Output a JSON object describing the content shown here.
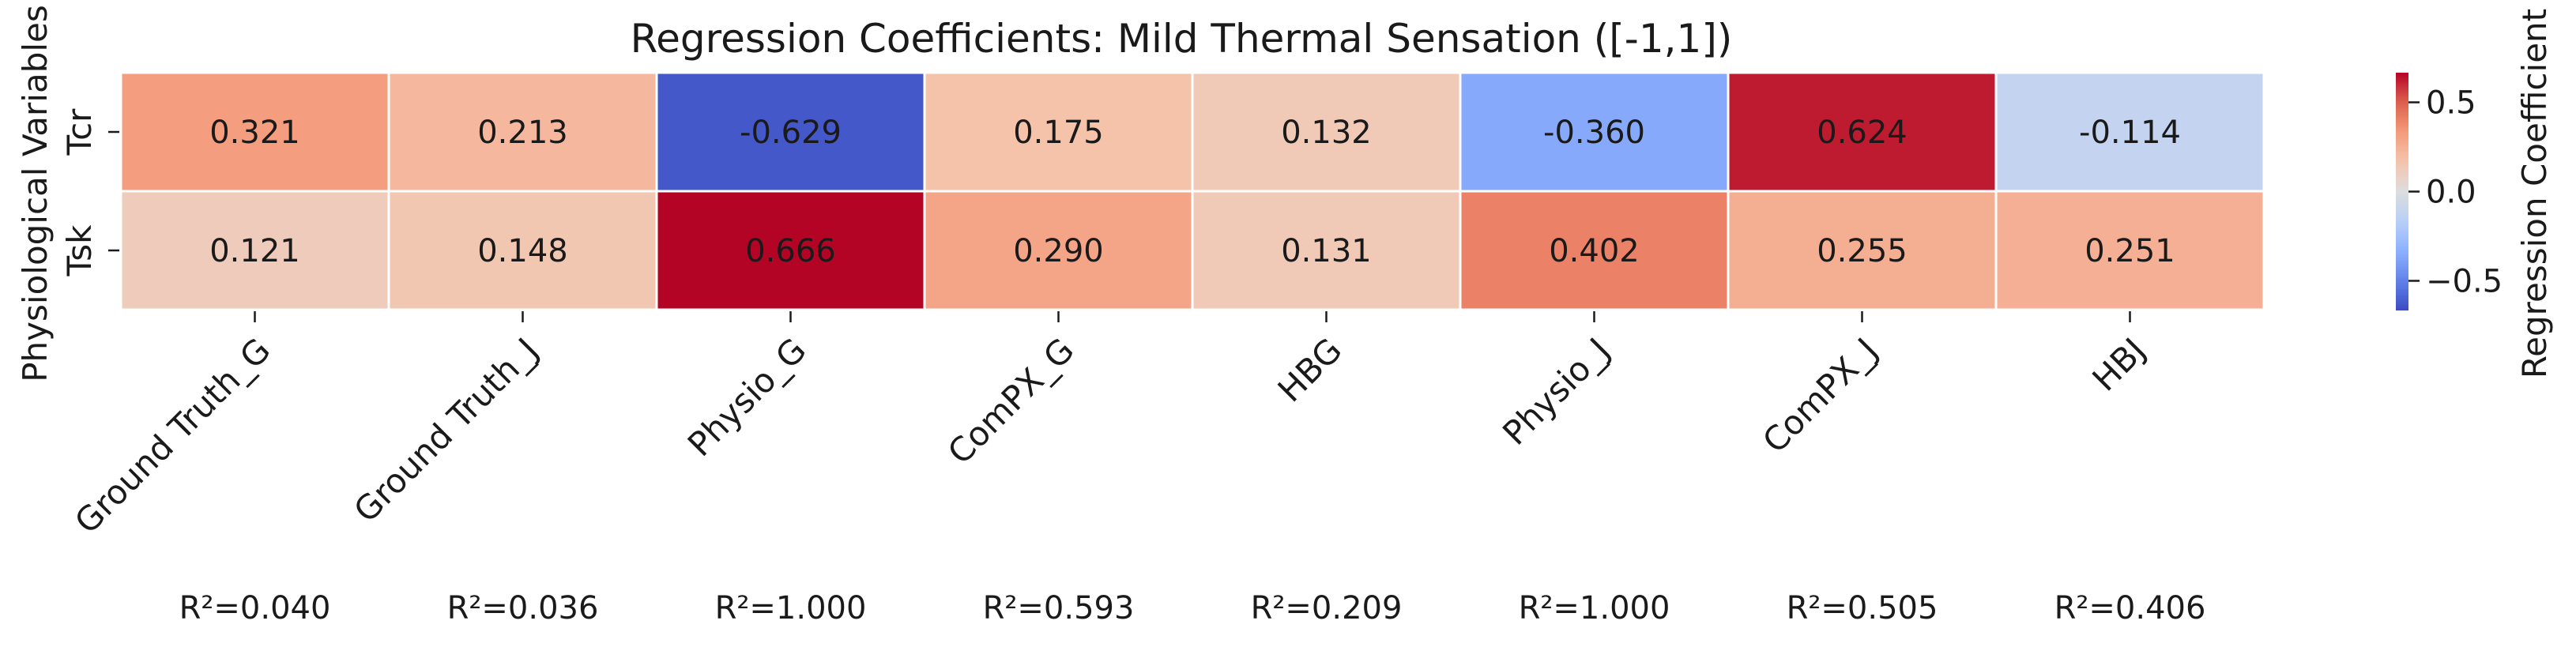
{
  "chart_data": {
    "type": "heatmap",
    "title": "Regression Coefficients: Mild Thermal Sensation ([-1,1])",
    "ylabel": "Physiological Variables",
    "x_categories": [
      "Ground Truth_G",
      "Ground Truth_J",
      "Physio_G",
      "ComPX_G",
      "HBG",
      "Physio_J",
      "ComPX_J",
      "HBJ"
    ],
    "y_categories": [
      "Tcr",
      "Tsk"
    ],
    "values": [
      [
        0.321,
        0.213,
        -0.629,
        0.175,
        0.132,
        -0.36,
        0.624,
        -0.114
      ],
      [
        0.121,
        0.148,
        0.666,
        0.29,
        0.131,
        0.402,
        0.255,
        0.251
      ]
    ],
    "value_labels": [
      [
        "0.321",
        "0.213",
        "-0.629",
        "0.175",
        "0.132",
        "-0.360",
        "0.624",
        "-0.114"
      ],
      [
        "0.121",
        "0.148",
        "0.666",
        "0.290",
        "0.131",
        "0.402",
        "0.255",
        "0.251"
      ]
    ],
    "r2_labels": [
      "R²=0.040",
      "R²=0.036",
      "R²=1.000",
      "R²=0.593",
      "R²=0.209",
      "R²=1.000",
      "R²=0.505",
      "R²=0.406"
    ],
    "colorbar": {
      "label": "Regression Coefficient",
      "vmin": -0.666,
      "vmax": 0.666,
      "ticks": [
        0.5,
        0.0,
        -0.5
      ],
      "tick_labels": [
        "0.5",
        "0.0",
        "−0.5"
      ],
      "colormap": "coolwarm"
    },
    "grid": false
  }
}
